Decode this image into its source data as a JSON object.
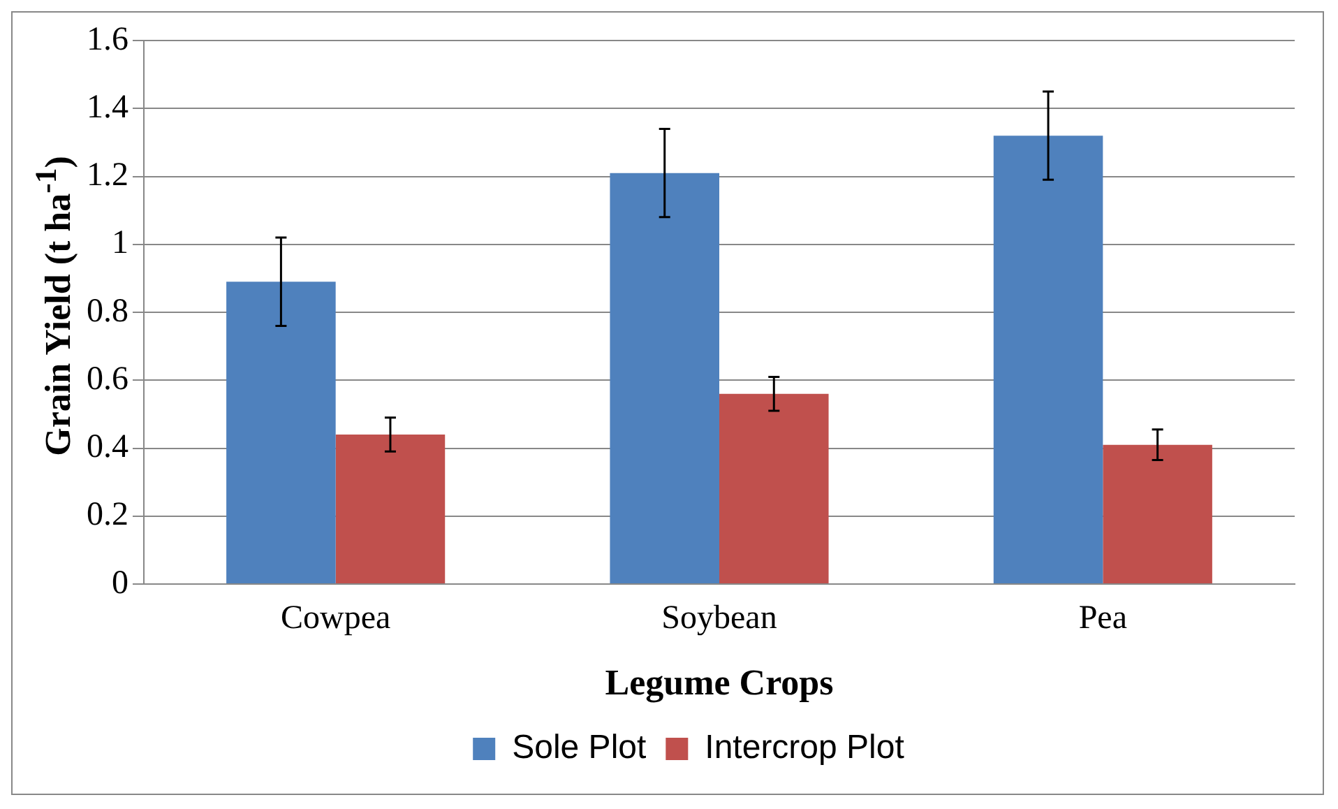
{
  "chart_data": {
    "type": "bar",
    "xlabel": "Legume Crops",
    "ylabel": "Grain Yield (t ha$^{-1}$)",
    "categories": [
      "Cowpea",
      "Soybean",
      "Pea"
    ],
    "series": [
      {
        "name": "Sole Plot",
        "color": "#4f81bd",
        "values": [
          0.89,
          1.21,
          1.32
        ],
        "errors": [
          0.13,
          0.13,
          0.13
        ]
      },
      {
        "name": "Intercrop Plot",
        "color": "#c0504d",
        "values": [
          0.44,
          0.56,
          0.41
        ],
        "errors": [
          0.05,
          0.05,
          0.045
        ]
      }
    ],
    "ylim": [
      0,
      1.6
    ],
    "yticks": [
      0,
      0.2,
      0.4,
      0.6,
      0.8,
      1,
      1.2,
      1.4,
      1.6
    ],
    "grid": "y",
    "legend": "bottom"
  }
}
